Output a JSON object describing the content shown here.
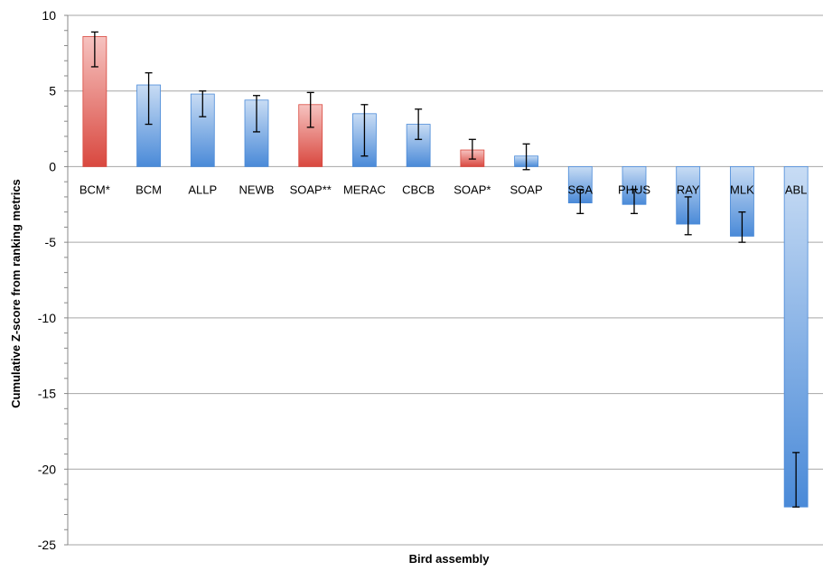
{
  "chart_data": {
    "type": "bar",
    "title": "",
    "xlabel": "Bird assembly",
    "ylabel": "Cumulative Z-score from ranking metrics",
    "ylim": [
      -25,
      10
    ],
    "yticks": [
      10,
      5,
      0,
      -5,
      -10,
      -15,
      -20,
      -25
    ],
    "grid": true,
    "categories": [
      "BCM*",
      "BCM",
      "ALLP",
      "NEWB",
      "SOAP**",
      "MERAC",
      "CBCB",
      "SOAP*",
      "SOAP",
      "SGA",
      "PHUS",
      "RAY",
      "MLK",
      "ABL"
    ],
    "values": [
      8.6,
      5.4,
      4.8,
      4.4,
      4.1,
      3.5,
      2.8,
      1.1,
      0.7,
      -2.4,
      -2.5,
      -3.8,
      -4.6,
      -22.5
    ],
    "error_low": [
      6.6,
      2.8,
      3.3,
      2.3,
      2.6,
      0.7,
      1.8,
      0.5,
      -0.2,
      -3.1,
      -3.1,
      -4.5,
      -5.0,
      -22.5
    ],
    "error_high": [
      8.9,
      6.2,
      5.0,
      4.7,
      4.9,
      4.1,
      3.8,
      1.8,
      1.5,
      -1.5,
      -1.5,
      -2.0,
      -3.0,
      -18.9
    ],
    "highlight": [
      true,
      false,
      false,
      false,
      true,
      false,
      false,
      true,
      false,
      false,
      false,
      false,
      false,
      false
    ],
    "colors": {
      "blue_light": "#c8dcf4",
      "blue_dark": "#4a8ad8",
      "red_light": "#f6c3c0",
      "red_dark": "#d9483f",
      "grid": "#a6a6a6"
    }
  }
}
